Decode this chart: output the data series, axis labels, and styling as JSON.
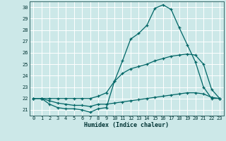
{
  "title": "",
  "xlabel": "Humidex (Indice chaleur)",
  "ylabel": "",
  "bg_color": "#cce8e8",
  "grid_color": "#ffffff",
  "line_color": "#006666",
  "xlim": [
    -0.5,
    23.5
  ],
  "ylim": [
    20.5,
    30.5
  ],
  "xticks": [
    0,
    1,
    2,
    3,
    4,
    5,
    6,
    7,
    8,
    9,
    10,
    11,
    12,
    13,
    14,
    15,
    16,
    17,
    18,
    19,
    20,
    21,
    22,
    23
  ],
  "yticks": [
    21,
    22,
    23,
    24,
    25,
    26,
    27,
    28,
    29,
    30
  ],
  "series1": {
    "x": [
      0,
      1,
      2,
      3,
      4,
      5,
      6,
      7,
      8,
      9,
      10,
      11,
      12,
      13,
      14,
      15,
      16,
      17,
      18,
      19,
      20,
      21,
      22,
      23
    ],
    "y": [
      22.0,
      22.0,
      21.5,
      21.2,
      21.1,
      21.1,
      21.0,
      20.8,
      21.1,
      21.2,
      23.5,
      25.3,
      27.2,
      27.7,
      28.4,
      29.9,
      30.2,
      29.8,
      28.2,
      26.7,
      25.2,
      23.0,
      22.0,
      22.0
    ]
  },
  "series2": {
    "x": [
      0,
      1,
      2,
      3,
      4,
      5,
      6,
      7,
      8,
      9,
      10,
      11,
      12,
      13,
      14,
      15,
      16,
      17,
      18,
      19,
      20,
      21,
      22,
      23
    ],
    "y": [
      22.0,
      22.0,
      22.0,
      22.0,
      22.0,
      22.0,
      22.0,
      22.0,
      22.2,
      22.5,
      23.5,
      24.2,
      24.6,
      24.8,
      25.0,
      25.3,
      25.5,
      25.7,
      25.8,
      25.9,
      25.8,
      25.0,
      22.8,
      22.0
    ]
  },
  "series3": {
    "x": [
      0,
      1,
      2,
      3,
      4,
      5,
      6,
      7,
      8,
      9,
      10,
      11,
      12,
      13,
      14,
      15,
      16,
      17,
      18,
      19,
      20,
      21,
      22,
      23
    ],
    "y": [
      22.0,
      22.0,
      21.8,
      21.6,
      21.5,
      21.4,
      21.4,
      21.3,
      21.5,
      21.5,
      21.6,
      21.7,
      21.8,
      21.9,
      22.0,
      22.1,
      22.2,
      22.3,
      22.4,
      22.5,
      22.5,
      22.4,
      22.1,
      22.0
    ]
  }
}
